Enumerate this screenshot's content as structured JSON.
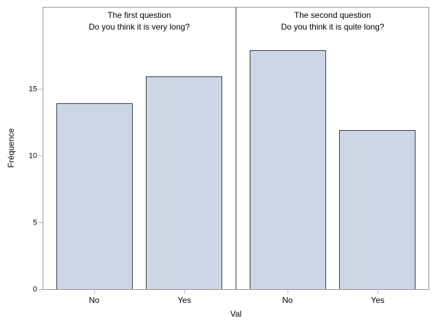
{
  "chart_data": {
    "type": "bar",
    "title": "",
    "ylabel": "Fréquence",
    "xlabel": "Val",
    "ylim": [
      0,
      21.2
    ],
    "yticks": [
      0,
      5,
      10,
      15
    ],
    "categories": [
      "No",
      "Yes"
    ],
    "panels": [
      {
        "header": [
          "The first question",
          "Do you think it is very long?"
        ],
        "values": [
          14,
          16
        ]
      },
      {
        "header": [
          "The second question",
          "Do you think it is quite long?"
        ],
        "values": [
          18,
          12
        ]
      }
    ],
    "grid": false,
    "legend": false,
    "colors": {
      "bar_fill": "#ccd6e4",
      "bar_border": "#333940",
      "frame": "#949494",
      "tick": "#b8b8b8",
      "text": "#000000"
    }
  }
}
